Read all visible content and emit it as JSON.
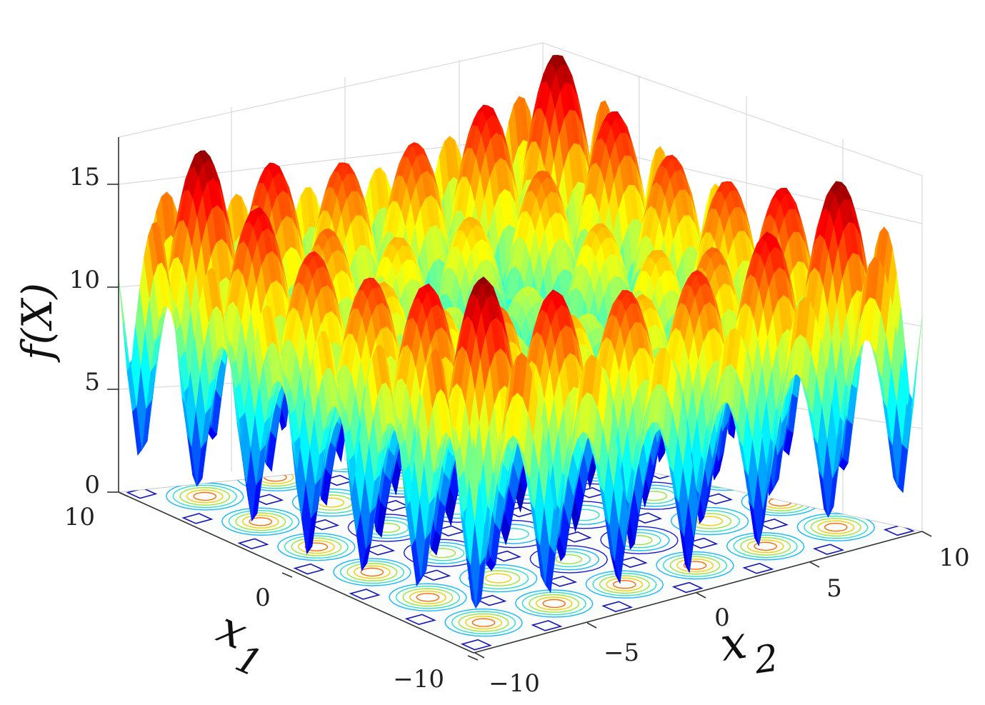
{
  "chart_data": {
    "type": "surface",
    "title": "",
    "xlabel": "x_1",
    "ylabel": "x_2",
    "zlabel": "f(X)",
    "x_label_main": "x",
    "x_label_sub": "1",
    "y_label_main": "x",
    "y_label_sub": "2",
    "x_range": [
      -10,
      10
    ],
    "y_range": [
      -10,
      10
    ],
    "z_range": [
      0,
      17
    ],
    "x_ticks": [
      "−10",
      "0",
      "10"
    ],
    "y_ticks": [
      "−10",
      "−5",
      "0",
      "5",
      "10"
    ],
    "z_ticks": [
      "0",
      "5",
      "10",
      "15"
    ],
    "colormap": "jet",
    "contour_projection": true,
    "grid": true,
    "peak_max": 17.3,
    "minima": 0
  }
}
